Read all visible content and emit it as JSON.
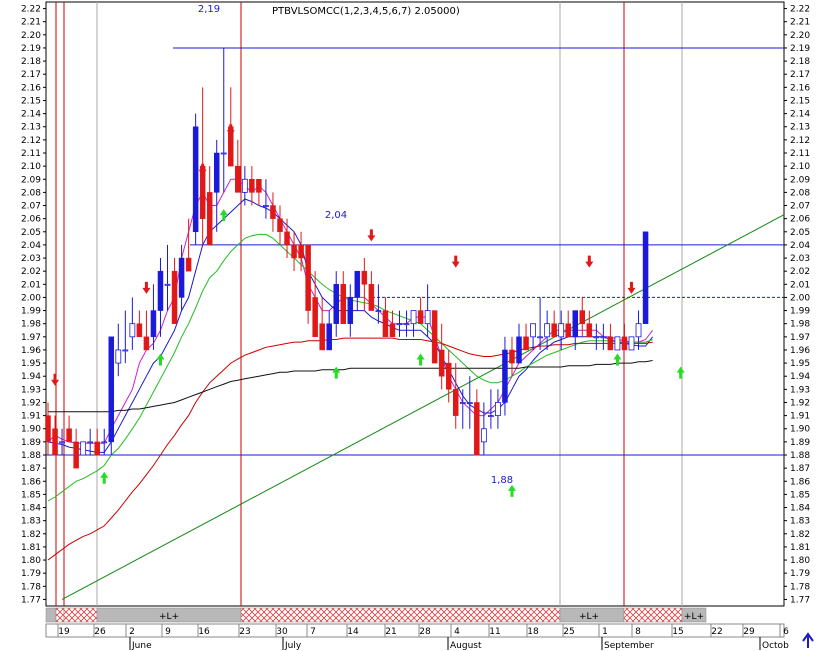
{
  "chart_data": {
    "type": "candlestick",
    "title": "PTBVLSOMCC(1,2,3,4,5,6,7) 2.05000)",
    "ylim": [
      1.765,
      2.225
    ],
    "y_ticks": [
      1.77,
      1.78,
      1.79,
      1.8,
      1.81,
      1.82,
      1.83,
      1.84,
      1.85,
      1.86,
      1.87,
      1.88,
      1.89,
      1.9,
      1.91,
      1.92,
      1.93,
      1.94,
      1.95,
      1.96,
      1.97,
      1.98,
      1.99,
      2.0,
      2.01,
      2.02,
      2.03,
      2.04,
      2.05,
      2.06,
      2.07,
      2.08,
      2.09,
      2.1,
      2.11,
      2.12,
      2.13,
      2.14,
      2.15,
      2.16,
      2.17,
      2.18,
      2.19,
      2.2,
      2.21,
      2.22
    ],
    "x_ticks": [
      "19",
      "26",
      "2",
      "9",
      "16",
      "23",
      "30",
      "7",
      "14",
      "21",
      "28",
      "4",
      "11",
      "18",
      "25",
      "1",
      "8",
      "15",
      "22",
      "29",
      "6"
    ],
    "months": [
      "June",
      "July",
      "August",
      "September",
      "Octob"
    ],
    "level_lines": [
      2.19,
      2.04,
      1.88
    ],
    "dashed_level": 2.0,
    "annotations": [
      "2,19",
      "2,04",
      "1,88"
    ],
    "band_labels": [
      "+L+",
      "+L+",
      "+L+"
    ],
    "candles": [
      {
        "o": 1.91,
        "h": 1.92,
        "l": 1.88,
        "c": 1.89
      },
      {
        "o": 1.9,
        "h": 1.91,
        "l": 1.88,
        "c": 1.88
      },
      {
        "o": 1.89,
        "h": 1.9,
        "l": 1.88,
        "c": 1.89
      },
      {
        "o": 1.9,
        "h": 1.91,
        "l": 1.89,
        "c": 1.89
      },
      {
        "o": 1.89,
        "h": 1.9,
        "l": 1.87,
        "c": 1.87
      },
      {
        "o": 1.88,
        "h": 1.89,
        "l": 1.88,
        "c": 1.89
      },
      {
        "o": 1.89,
        "h": 1.9,
        "l": 1.88,
        "c": 1.89
      },
      {
        "o": 1.89,
        "h": 1.9,
        "l": 1.88,
        "c": 1.88
      },
      {
        "o": 1.89,
        "h": 1.9,
        "l": 1.88,
        "c": 1.89
      },
      {
        "o": 1.89,
        "h": 1.97,
        "l": 1.88,
        "c": 1.97
      },
      {
        "o": 1.95,
        "h": 1.98,
        "l": 1.94,
        "c": 1.96
      },
      {
        "o": 1.96,
        "h": 1.99,
        "l": 1.95,
        "c": 1.96
      },
      {
        "o": 1.97,
        "h": 2.0,
        "l": 1.96,
        "c": 1.98
      },
      {
        "o": 1.98,
        "h": 1.99,
        "l": 1.97,
        "c": 1.97
      },
      {
        "o": 1.97,
        "h": 1.99,
        "l": 1.96,
        "c": 1.96
      },
      {
        "o": 1.97,
        "h": 2.01,
        "l": 1.96,
        "c": 1.99
      },
      {
        "o": 1.99,
        "h": 2.03,
        "l": 1.97,
        "c": 2.02
      },
      {
        "o": 2.01,
        "h": 2.04,
        "l": 1.99,
        "c": 2.01
      },
      {
        "o": 2.02,
        "h": 2.03,
        "l": 1.98,
        "c": 1.98
      },
      {
        "o": 2.0,
        "h": 2.04,
        "l": 1.99,
        "c": 2.03
      },
      {
        "o": 2.03,
        "h": 2.06,
        "l": 2.02,
        "c": 2.02
      },
      {
        "o": 2.05,
        "h": 2.14,
        "l": 2.04,
        "c": 2.13
      },
      {
        "o": 2.1,
        "h": 2.16,
        "l": 2.04,
        "c": 2.06
      },
      {
        "o": 2.08,
        "h": 2.1,
        "l": 2.04,
        "c": 2.04
      },
      {
        "o": 2.08,
        "h": 2.12,
        "l": 2.05,
        "c": 2.11
      },
      {
        "o": 2.11,
        "h": 2.19,
        "l": 2.08,
        "c": 2.11
      },
      {
        "o": 2.13,
        "h": 2.16,
        "l": 2.1,
        "c": 2.1
      },
      {
        "o": 2.1,
        "h": 2.12,
        "l": 2.08,
        "c": 2.08
      },
      {
        "o": 2.08,
        "h": 2.1,
        "l": 2.07,
        "c": 2.09
      },
      {
        "o": 2.09,
        "h": 2.1,
        "l": 2.07,
        "c": 2.08
      },
      {
        "o": 2.09,
        "h": 2.09,
        "l": 2.07,
        "c": 2.08
      },
      {
        "o": 2.07,
        "h": 2.09,
        "l": 2.06,
        "c": 2.07
      },
      {
        "o": 2.07,
        "h": 2.08,
        "l": 2.05,
        "c": 2.06
      },
      {
        "o": 2.06,
        "h": 2.07,
        "l": 2.04,
        "c": 2.05
      },
      {
        "o": 2.05,
        "h": 2.06,
        "l": 2.03,
        "c": 2.04
      },
      {
        "o": 2.04,
        "h": 2.05,
        "l": 2.02,
        "c": 2.03
      },
      {
        "o": 2.04,
        "h": 2.05,
        "l": 2.02,
        "c": 2.03
      },
      {
        "o": 2.04,
        "h": 2.04,
        "l": 1.98,
        "c": 1.99
      },
      {
        "o": 2.0,
        "h": 2.02,
        "l": 1.97,
        "c": 1.97
      },
      {
        "o": 1.98,
        "h": 2.0,
        "l": 1.96,
        "c": 1.96
      },
      {
        "o": 1.96,
        "h": 1.99,
        "l": 1.96,
        "c": 1.98
      },
      {
        "o": 1.98,
        "h": 2.02,
        "l": 1.97,
        "c": 2.01
      },
      {
        "o": 2.01,
        "h": 2.02,
        "l": 1.98,
        "c": 1.98
      },
      {
        "o": 1.98,
        "h": 2.01,
        "l": 1.97,
        "c": 2.0
      },
      {
        "o": 2.0,
        "h": 2.02,
        "l": 1.99,
        "c": 2.02
      },
      {
        "o": 2.02,
        "h": 2.03,
        "l": 1.99,
        "c": 2.01
      },
      {
        "o": 2.01,
        "h": 2.02,
        "l": 1.99,
        "c": 1.99
      },
      {
        "o": 1.99,
        "h": 2.01,
        "l": 1.98,
        "c": 1.99
      },
      {
        "o": 1.99,
        "h": 2.0,
        "l": 1.97,
        "c": 1.97
      },
      {
        "o": 1.98,
        "h": 1.99,
        "l": 1.97,
        "c": 1.97
      },
      {
        "o": 1.98,
        "h": 1.99,
        "l": 1.97,
        "c": 1.98
      },
      {
        "o": 1.98,
        "h": 1.99,
        "l": 1.97,
        "c": 1.98
      },
      {
        "o": 1.98,
        "h": 1.99,
        "l": 1.97,
        "c": 1.99
      },
      {
        "o": 1.99,
        "h": 2.0,
        "l": 1.98,
        "c": 1.98
      },
      {
        "o": 1.98,
        "h": 2.01,
        "l": 1.97,
        "c": 1.99
      },
      {
        "o": 1.99,
        "h": 1.99,
        "l": 1.95,
        "c": 1.95
      },
      {
        "o": 1.96,
        "h": 1.98,
        "l": 1.93,
        "c": 1.94
      },
      {
        "o": 1.95,
        "h": 1.96,
        "l": 1.92,
        "c": 1.93
      },
      {
        "o": 1.93,
        "h": 1.95,
        "l": 1.9,
        "c": 1.91
      },
      {
        "o": 1.92,
        "h": 1.93,
        "l": 1.9,
        "c": 1.92
      },
      {
        "o": 1.92,
        "h": 1.94,
        "l": 1.9,
        "c": 1.92
      },
      {
        "o": 1.92,
        "h": 1.93,
        "l": 1.88,
        "c": 1.88
      },
      {
        "o": 1.89,
        "h": 1.92,
        "l": 1.88,
        "c": 1.9
      },
      {
        "o": 1.91,
        "h": 1.93,
        "l": 1.9,
        "c": 1.91
      },
      {
        "o": 1.91,
        "h": 1.93,
        "l": 1.9,
        "c": 1.92
      },
      {
        "o": 1.92,
        "h": 1.97,
        "l": 1.91,
        "c": 1.96
      },
      {
        "o": 1.96,
        "h": 1.97,
        "l": 1.94,
        "c": 1.95
      },
      {
        "o": 1.95,
        "h": 1.98,
        "l": 1.95,
        "c": 1.97
      },
      {
        "o": 1.97,
        "h": 1.98,
        "l": 1.96,
        "c": 1.96
      },
      {
        "o": 1.97,
        "h": 1.98,
        "l": 1.96,
        "c": 1.98
      },
      {
        "o": 1.97,
        "h": 2.0,
        "l": 1.96,
        "c": 1.97
      },
      {
        "o": 1.97,
        "h": 1.99,
        "l": 1.96,
        "c": 1.98
      },
      {
        "o": 1.98,
        "h": 1.99,
        "l": 1.97,
        "c": 1.97
      },
      {
        "o": 1.97,
        "h": 1.99,
        "l": 1.96,
        "c": 1.98
      },
      {
        "o": 1.98,
        "h": 1.99,
        "l": 1.97,
        "c": 1.97
      },
      {
        "o": 1.97,
        "h": 1.99,
        "l": 1.96,
        "c": 1.99
      },
      {
        "o": 1.99,
        "h": 2.0,
        "l": 1.97,
        "c": 1.98
      },
      {
        "o": 1.98,
        "h": 1.99,
        "l": 1.97,
        "c": 1.97
      },
      {
        "o": 1.97,
        "h": 1.98,
        "l": 1.96,
        "c": 1.97
      },
      {
        "o": 1.97,
        "h": 1.98,
        "l": 1.96,
        "c": 1.97
      },
      {
        "o": 1.97,
        "h": 1.98,
        "l": 1.96,
        "c": 1.96
      },
      {
        "o": 1.96,
        "h": 1.97,
        "l": 1.96,
        "c": 1.97
      },
      {
        "o": 1.97,
        "h": 1.98,
        "l": 1.96,
        "c": 1.96
      },
      {
        "o": 1.96,
        "h": 1.97,
        "l": 1.96,
        "c": 1.97
      },
      {
        "o": 1.97,
        "h": 1.99,
        "l": 1.96,
        "c": 1.98
      },
      {
        "o": 1.98,
        "h": 2.05,
        "l": 1.98,
        "c": 2.05
      }
    ],
    "series": [
      {
        "values": [
          1.89,
          1.895,
          1.892,
          1.89,
          1.889,
          1.889,
          1.889,
          1.889,
          1.889,
          1.9,
          1.91,
          1.92,
          1.93,
          1.95,
          1.96,
          1.965,
          1.975,
          1.99,
          2.0,
          2.03,
          2.05,
          2.07,
          2.08,
          2.07,
          2.07,
          2.08,
          2.09,
          2.09,
          2.085,
          2.08,
          2.085,
          2.08,
          2.07,
          2.06,
          2.05,
          2.04,
          2.03,
          2.01,
          2.0,
          1.99,
          1.99,
          1.995,
          2.0,
          2.0,
          2.0,
          2.0,
          1.995,
          1.99,
          1.985,
          1.98,
          1.98,
          1.98,
          1.985,
          1.985,
          1.985,
          1.97,
          1.955,
          1.94,
          1.93,
          1.92,
          1.915,
          1.91,
          1.91,
          1.915,
          1.92,
          1.93,
          1.94,
          1.95,
          1.955,
          1.96,
          1.965,
          1.97,
          1.975,
          1.975,
          1.975,
          1.975,
          1.975,
          1.975,
          1.975,
          1.97,
          1.97,
          1.968,
          1.967,
          1.966,
          1.966,
          1.968,
          1.975
        ]
      },
      {
        "values": [
          1.89,
          1.889,
          1.888,
          1.886,
          1.885,
          1.884,
          1.883,
          1.882,
          1.882,
          1.89,
          1.9,
          1.91,
          1.92,
          1.93,
          1.94,
          1.95,
          1.955,
          1.965,
          1.975,
          1.99,
          2.0,
          2.02,
          2.04,
          2.05,
          2.055,
          2.06,
          2.065,
          2.07,
          2.075,
          2.073,
          2.07,
          2.068,
          2.065,
          2.06,
          2.055,
          2.05,
          2.04,
          2.02,
          2.01,
          2.0,
          1.995,
          1.99,
          1.99,
          1.99,
          1.99,
          1.99,
          1.985,
          1.982,
          1.98,
          1.977,
          1.975,
          1.975,
          1.975,
          1.975,
          1.97,
          1.965,
          1.955,
          1.945,
          1.935,
          1.925,
          1.918,
          1.915,
          1.912,
          1.912,
          1.915,
          1.92,
          1.93,
          1.94,
          1.945,
          1.952,
          1.958,
          1.962,
          1.966,
          1.968,
          1.97,
          1.97,
          1.97,
          1.97,
          1.97,
          1.97,
          1.968,
          1.966,
          1.965,
          1.964,
          1.963,
          1.963,
          1.97
        ]
      },
      {
        "values": [
          1.845,
          1.848,
          1.852,
          1.856,
          1.86,
          1.862,
          1.865,
          1.868,
          1.872,
          1.88,
          1.885,
          1.892,
          1.9,
          1.908,
          1.918,
          1.928,
          1.938,
          1.948,
          1.958,
          1.97,
          1.98,
          1.992,
          2.005,
          2.015,
          2.02,
          2.028,
          2.035,
          2.04,
          2.045,
          2.047,
          2.048,
          2.048,
          2.045,
          2.04,
          2.035,
          2.03,
          2.025,
          2.02,
          2.015,
          2.01,
          2.006,
          2.003,
          2.0,
          1.998,
          1.997,
          1.996,
          1.995,
          1.993,
          1.99,
          1.988,
          1.986,
          1.984,
          1.982,
          1.98,
          1.975,
          1.97,
          1.965,
          1.96,
          1.955,
          1.95,
          1.945,
          1.94,
          1.937,
          1.935,
          1.935,
          1.937,
          1.94,
          1.943,
          1.947,
          1.95,
          1.953,
          1.956,
          1.958,
          1.96,
          1.962,
          1.964,
          1.966,
          1.967,
          1.967,
          1.967,
          1.967,
          1.966,
          1.966,
          1.966,
          1.966,
          1.966,
          1.968
        ]
      },
      {
        "values": [
          1.8,
          1.804,
          1.808,
          1.812,
          1.815,
          1.818,
          1.82,
          1.823,
          1.826,
          1.832,
          1.838,
          1.845,
          1.852,
          1.858,
          1.865,
          1.872,
          1.88,
          1.888,
          1.895,
          1.903,
          1.91,
          1.92,
          1.928,
          1.935,
          1.94,
          1.945,
          1.95,
          1.953,
          1.956,
          1.958,
          1.96,
          1.962,
          1.963,
          1.964,
          1.965,
          1.966,
          1.966,
          1.967,
          1.967,
          1.967,
          1.968,
          1.968,
          1.969,
          1.969,
          1.969,
          1.969,
          1.969,
          1.969,
          1.969,
          1.969,
          1.968,
          1.968,
          1.968,
          1.968,
          1.967,
          1.966,
          1.965,
          1.963,
          1.961,
          1.959,
          1.957,
          1.956,
          1.955,
          1.955,
          1.956,
          1.957,
          1.958,
          1.96,
          1.961,
          1.962,
          1.963,
          1.963,
          1.964,
          1.964,
          1.964,
          1.965,
          1.965,
          1.965,
          1.965,
          1.965,
          1.965,
          1.965,
          1.965,
          1.965,
          1.965,
          1.965,
          1.966
        ]
      },
      {
        "values": [
          1.913,
          1.913,
          1.913,
          1.913,
          1.913,
          1.913,
          1.913,
          1.913,
          1.913,
          1.913,
          1.914,
          1.914,
          1.915,
          1.915,
          1.916,
          1.917,
          1.918,
          1.919,
          1.92,
          1.922,
          1.924,
          1.926,
          1.928,
          1.93,
          1.932,
          1.934,
          1.936,
          1.937,
          1.938,
          1.939,
          1.94,
          1.941,
          1.942,
          1.943,
          1.943,
          1.944,
          1.944,
          1.944,
          1.944,
          1.945,
          1.945,
          1.945,
          1.945,
          1.946,
          1.946,
          1.946,
          1.946,
          1.946,
          1.946,
          1.946,
          1.946,
          1.946,
          1.946,
          1.946,
          1.946,
          1.946,
          1.946,
          1.946,
          1.946,
          1.946,
          1.946,
          1.946,
          1.946,
          1.946,
          1.946,
          1.946,
          1.946,
          1.946,
          1.947,
          1.947,
          1.947,
          1.947,
          1.947,
          1.947,
          1.948,
          1.948,
          1.948,
          1.948,
          1.949,
          1.949,
          1.949,
          1.95,
          1.95,
          1.95,
          1.951,
          1.951,
          1.952
        ]
      }
    ],
    "sell_arrows": [
      {
        "i": 1,
        "y": 1.935
      },
      {
        "i": 14,
        "y": 2.005
      },
      {
        "i": 22,
        "y": 2.095
      },
      {
        "i": 26,
        "y": 2.125
      },
      {
        "i": 46,
        "y": 2.045
      },
      {
        "i": 58,
        "y": 2.025
      },
      {
        "i": 77,
        "y": 2.025
      },
      {
        "i": 83,
        "y": 2.005
      }
    ],
    "buy_arrows": [
      {
        "i": 8,
        "y": 1.865
      },
      {
        "i": 16,
        "y": 1.955
      },
      {
        "i": 25,
        "y": 2.065
      },
      {
        "i": 41,
        "y": 1.945
      },
      {
        "i": 53,
        "y": 1.955
      },
      {
        "i": 66,
        "y": 1.855
      },
      {
        "i": 81,
        "y": 1.955
      },
      {
        "i": 90,
        "y": 1.945
      }
    ],
    "trend_line": {
      "from_i": 2,
      "from_y": 1.77,
      "to_i": 110,
      "to_y": 2.063
    },
    "colors": {
      "up": "#1a1ad8",
      "down": "#e01818",
      "ma_magenta": "#cc22cc",
      "ma_blue": "#1a1acc",
      "ma_green": "#22bb22",
      "ma_red": "#cc0000",
      "ma_black": "#111111",
      "trend": "#118811",
      "level": "#1a1acc",
      "vline_red": "#cc0000",
      "vline_gray": "#aaaaaa"
    }
  }
}
